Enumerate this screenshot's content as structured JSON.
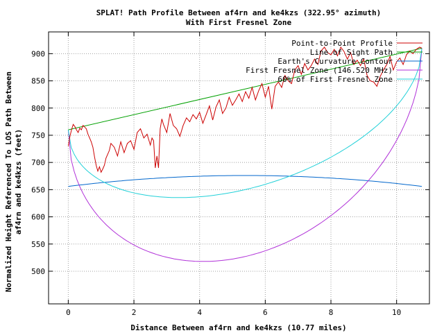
{
  "chart_data": {
    "type": "line",
    "title_line1": "SPLAT! Path Profile Between af4rn and ke4kzs (322.95° azimuth)",
    "title_line2": "With First Fresnel Zone",
    "xlabel": "Distance Between af4rn and ke4kzs (10.77 miles)",
    "ylabel_line1": "Normalized Height Referenced To LOS Path Between",
    "ylabel_line2": "af4rn and ke4kzs (feet)",
    "xlim": [
      -0.6,
      11.0
    ],
    "ylim": [
      440,
      940
    ],
    "xticks": [
      0,
      2,
      4,
      6,
      8,
      10
    ],
    "yticks": [
      500,
      550,
      600,
      650,
      700,
      750,
      800,
      850,
      900
    ],
    "grid": true,
    "legend_position": "top-right",
    "series": [
      {
        "name": "Point-to-Point Profile",
        "color": "#cc0000",
        "x": [
          0,
          0.05,
          0.1,
          0.15,
          0.2,
          0.25,
          0.3,
          0.35,
          0.4,
          0.45,
          0.5,
          0.55,
          0.6,
          0.65,
          0.7,
          0.75,
          0.8,
          0.85,
          0.9,
          0.95,
          1.0,
          1.05,
          1.1,
          1.15,
          1.2,
          1.25,
          1.3,
          1.4,
          1.5,
          1.6,
          1.7,
          1.8,
          1.9,
          2.0,
          2.1,
          2.2,
          2.3,
          2.4,
          2.5,
          2.55,
          2.6,
          2.65,
          2.7,
          2.75,
          2.8,
          2.85,
          2.9,
          3.0,
          3.1,
          3.2,
          3.3,
          3.4,
          3.5,
          3.6,
          3.7,
          3.8,
          3.9,
          4.0,
          4.1,
          4.2,
          4.3,
          4.4,
          4.5,
          4.6,
          4.7,
          4.8,
          4.9,
          5.0,
          5.1,
          5.2,
          5.3,
          5.4,
          5.5,
          5.6,
          5.7,
          5.8,
          5.9,
          6.0,
          6.1,
          6.2,
          6.3,
          6.4,
          6.5,
          6.6,
          6.7,
          6.8,
          6.9,
          7.0,
          7.1,
          7.2,
          7.3,
          7.4,
          7.5,
          7.6,
          7.7,
          7.8,
          7.9,
          8.0,
          8.1,
          8.2,
          8.3,
          8.4,
          8.5,
          8.6,
          8.7,
          8.8,
          8.9,
          9.0,
          9.1,
          9.2,
          9.3,
          9.4,
          9.5,
          9.6,
          9.7,
          9.8,
          9.9,
          10.0,
          10.1,
          10.2,
          10.3,
          10.4,
          10.5,
          10.6,
          10.7,
          10.77
        ],
        "y": [
          730,
          748,
          760,
          770,
          766,
          760,
          755,
          763,
          760,
          768,
          765,
          762,
          752,
          745,
          738,
          728,
          710,
          695,
          684,
          692,
          682,
          688,
          695,
          708,
          715,
          722,
          735,
          728,
          712,
          738,
          718,
          735,
          740,
          724,
          755,
          762,
          745,
          752,
          732,
          745,
          740,
          690,
          712,
          690,
          762,
          780,
          770,
          755,
          790,
          768,
          762,
          748,
          768,
          782,
          775,
          788,
          780,
          792,
          772,
          788,
          804,
          778,
          802,
          815,
          790,
          800,
          820,
          805,
          815,
          826,
          812,
          830,
          818,
          838,
          815,
          832,
          845,
          820,
          840,
          798,
          840,
          848,
          838,
          860,
          850,
          845,
          870,
          878,
          862,
          882,
          870,
          878,
          890,
          880,
          905,
          912,
          902,
          898,
          908,
          896,
          912,
          904,
          890,
          902,
          880,
          888,
          878,
          890,
          860,
          850,
          848,
          840,
          858,
          870,
          880,
          895,
          870,
          885,
          892,
          880,
          898,
          905,
          900,
          908,
          912,
          910
        ]
      },
      {
        "name": "Line of Sight Path",
        "color": "#00a000",
        "x": [
          0,
          10.77
        ],
        "y": [
          760,
          910
        ]
      },
      {
        "name": "Earth's Curvature Contour",
        "color": "#0066cc",
        "curve": {
          "kind": "parabola",
          "x0": 0,
          "x1": 10.77,
          "y_start": 656,
          "y_end": 656,
          "y_mid": 676
        }
      },
      {
        "name": "First Fresnel Zone (146.520 MHz)",
        "color": "#b030d8",
        "curve": {
          "kind": "fresnel",
          "x0": 0,
          "x1": 10.77,
          "y_start": 760,
          "y_end": 910,
          "radius_mid": 308
        }
      },
      {
        "name": "60% of First Fresnel Zone",
        "color": "#20d0d8",
        "curve": {
          "kind": "fresnel",
          "x0": 0,
          "x1": 10.77,
          "y_start": 760,
          "y_end": 910,
          "radius_mid": 185
        }
      }
    ]
  }
}
